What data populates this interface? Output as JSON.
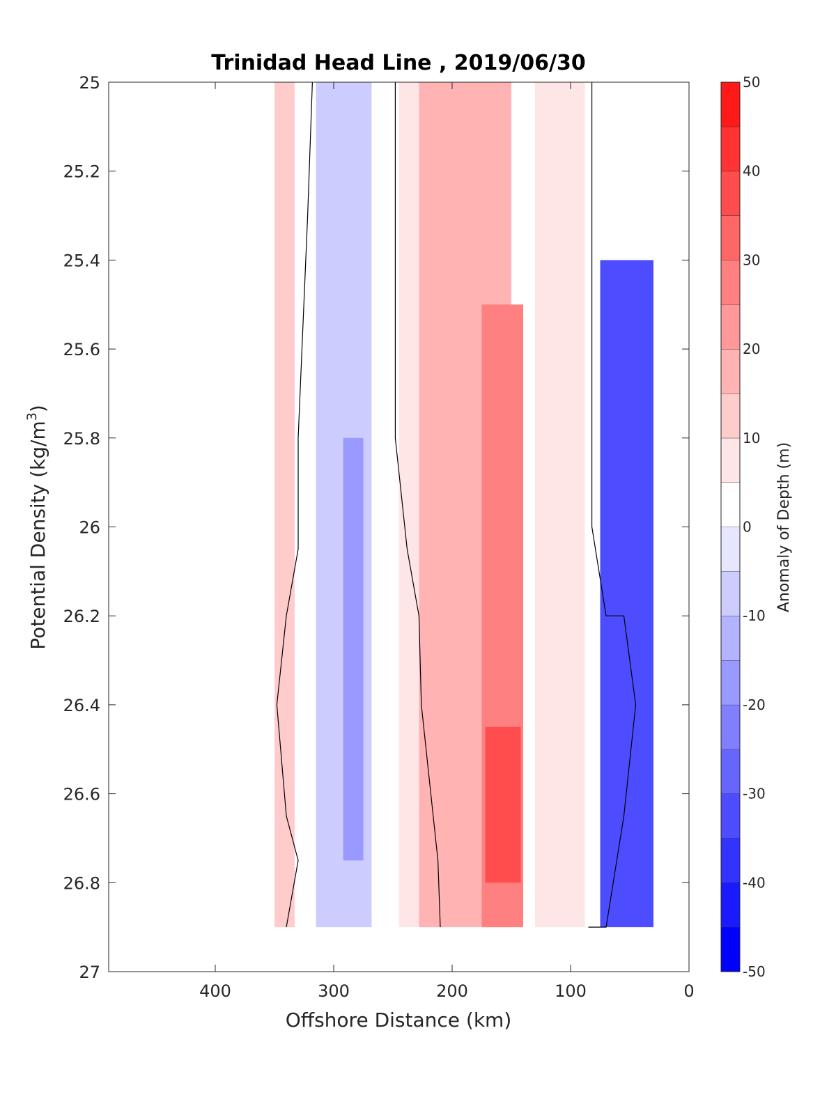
{
  "chart_data": {
    "type": "heatmap",
    "title": "Trinidad Head Line , 2019/06/30",
    "xlabel": "Offshore Distance (km)",
    "ylabel_main": "Potential Density (kg/m",
    "ylabel_sup": "3",
    "ylabel_close": ")",
    "colorbar_label": "Anomaly of Depth (m)",
    "x_reversed": true,
    "xlim": [
      0,
      490
    ],
    "ylim": [
      25,
      27
    ],
    "y_reversed": true,
    "x_ticks": [
      400,
      300,
      200,
      100,
      0
    ],
    "x_tick_labels": [
      "400",
      "300",
      "200",
      "100",
      "0"
    ],
    "y_ticks": [
      25,
      25.2,
      25.4,
      25.6,
      25.8,
      26,
      26.2,
      26.4,
      26.6,
      26.8,
      27
    ],
    "y_tick_labels": [
      "25",
      "25.2",
      "25.4",
      "25.6",
      "25.8",
      "26",
      "26.2",
      "26.4",
      "26.6",
      "26.8",
      "27"
    ],
    "color_levels": [
      -50,
      -45,
      -40,
      -35,
      -30,
      -25,
      -20,
      -15,
      -10,
      -5,
      0,
      5,
      10,
      15,
      20,
      25,
      30,
      35,
      40,
      45,
      50
    ],
    "colorbar_tick_values": [
      -50,
      -40,
      -30,
      -20,
      -10,
      0,
      10,
      20,
      30,
      40,
      50
    ],
    "colorbar_tick_labels": [
      "-50",
      "-40",
      "-30",
      "-20",
      "-10",
      "0",
      "10",
      "20",
      "30",
      "40",
      "50"
    ],
    "colorbar_colors": [
      "#0000ff",
      "#1a1aff",
      "#3333ff",
      "#4d4dff",
      "#6666ff",
      "#8080ff",
      "#9999ff",
      "#b3b3ff",
      "#ccccff",
      "#e6e6ff",
      "#ffffff",
      "#ffe6e6",
      "#ffcccc",
      "#ffb3b3",
      "#ff9999",
      "#ff8080",
      "#ff6666",
      "#ff4d4d",
      "#ff3333",
      "#ff1a1a",
      "#ff0000"
    ],
    "data_extent": {
      "x": [
        30,
        350
      ],
      "y": [
        25,
        26.9
      ]
    },
    "columns": [
      {
        "x_range": [
          333,
          350
        ],
        "anomaly": 10,
        "color": "#ffcccc"
      },
      {
        "x_range": [
          268,
          315
        ],
        "anomaly": -10,
        "color": "#ccccff"
      },
      {
        "x_range": [
          275,
          292
        ],
        "anomaly": -20,
        "color": "#9999ff",
        "y_range": [
          25.8,
          26.75
        ]
      },
      {
        "x_range": [
          205,
          245
        ],
        "anomaly": 5,
        "color": "#ffe6e6"
      },
      {
        "x_range": [
          150,
          228
        ],
        "anomaly": 15,
        "color": "#ffb3b3"
      },
      {
        "x_range": [
          140,
          175
        ],
        "anomaly": 25,
        "color": "#ff8080",
        "y_range": [
          25.5,
          26.9
        ]
      },
      {
        "x_range": [
          142,
          172
        ],
        "anomaly": 35,
        "color": "#ff4d4d",
        "y_range": [
          26.45,
          26.8
        ]
      },
      {
        "x_range": [
          88,
          130
        ],
        "anomaly": 5,
        "color": "#ffe6e6"
      },
      {
        "x_range": [
          30,
          75
        ],
        "anomaly": -35,
        "color": "#4d4dff",
        "y_range": [
          25.4,
          26.9
        ]
      }
    ],
    "zero_contours": [
      [
        [
          318,
          25.0
        ],
        [
          322,
          25.3
        ],
        [
          330,
          25.8
        ],
        [
          330,
          26.05
        ],
        [
          340,
          26.2
        ],
        [
          348,
          26.4
        ],
        [
          340,
          26.65
        ],
        [
          330,
          26.75
        ],
        [
          340,
          26.9
        ]
      ],
      [
        [
          248,
          25.0
        ],
        [
          248,
          25.8
        ],
        [
          238,
          26.05
        ],
        [
          228,
          26.2
        ],
        [
          226,
          26.4
        ],
        [
          212,
          26.75
        ],
        [
          210,
          26.9
        ]
      ],
      [
        [
          82,
          25.0
        ],
        [
          82,
          26.0
        ],
        [
          70,
          26.2
        ],
        [
          55,
          26.2
        ],
        [
          45,
          26.4
        ],
        [
          55,
          26.65
        ],
        [
          70,
          26.9
        ],
        [
          85,
          26.9
        ]
      ]
    ]
  }
}
